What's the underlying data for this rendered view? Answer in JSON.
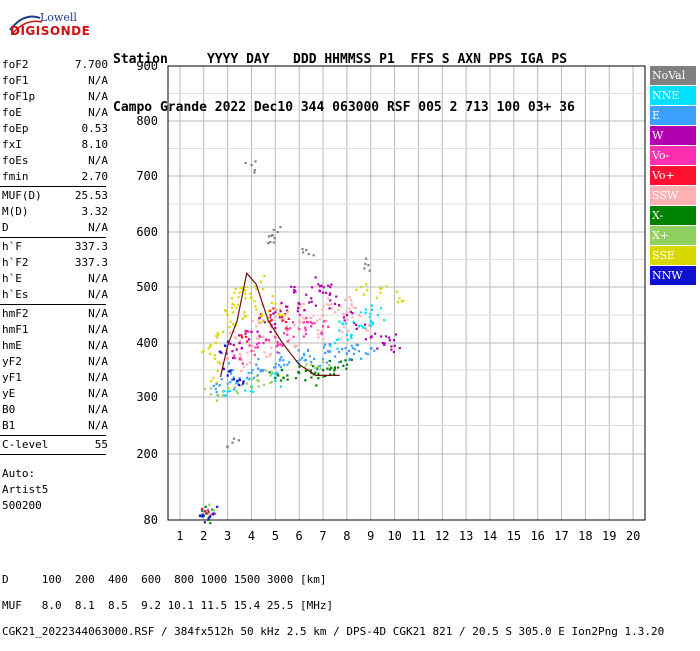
{
  "logo": {
    "line1": "Lowell",
    "line2": "DIGISONDE"
  },
  "header": {
    "labels": [
      "Station",
      "YYYY",
      "DAY",
      "DDD",
      "HHMMSS",
      "P1",
      "FFS",
      "S",
      "AXN",
      "PPS",
      "IGA",
      "PS"
    ],
    "values": [
      "Campo Grande",
      "2022",
      "Dec10",
      "344",
      "063000",
      "RSF",
      "005",
      "2",
      "713",
      "100",
      "03+",
      "36"
    ]
  },
  "params": {
    "group1": [
      {
        "name": "foF2",
        "value": "7.700"
      },
      {
        "name": "foF1",
        "value": "N/A"
      },
      {
        "name": "foF1p",
        "value": "N/A"
      },
      {
        "name": "foE",
        "value": "N/A"
      },
      {
        "name": "foEp",
        "value": "0.53"
      },
      {
        "name": "fxI",
        "value": "8.10"
      },
      {
        "name": "foEs",
        "value": "N/A"
      },
      {
        "name": "fmin",
        "value": "2.70"
      }
    ],
    "group2": [
      {
        "name": "MUF(D)",
        "value": "25.53"
      },
      {
        "name": "M(D)",
        "value": "3.32"
      },
      {
        "name": "D",
        "value": "N/A"
      }
    ],
    "group3": [
      {
        "name": "h`F",
        "value": "337.3"
      },
      {
        "name": "h`F2",
        "value": "337.3"
      },
      {
        "name": "h`E",
        "value": "N/A"
      },
      {
        "name": "h`Es",
        "value": "N/A"
      }
    ],
    "group4": [
      {
        "name": "hmF2",
        "value": "N/A"
      },
      {
        "name": "hmF1",
        "value": "N/A"
      },
      {
        "name": "hmE",
        "value": "N/A"
      },
      {
        "name": "yF2",
        "value": "N/A"
      },
      {
        "name": "yF1",
        "value": "N/A"
      },
      {
        "name": "yE",
        "value": "N/A"
      },
      {
        "name": "B0",
        "value": "N/A"
      },
      {
        "name": "B1",
        "value": "N/A"
      }
    ],
    "group5": [
      {
        "name": "C-level",
        "value": "55"
      }
    ],
    "auto": [
      "Auto:",
      "Artist5",
      "500200"
    ]
  },
  "legend": [
    {
      "label": "NoVal",
      "color": "#808080"
    },
    {
      "label": "NNE",
      "color": "#00e0ff"
    },
    {
      "label": "E",
      "color": "#3ca0ff"
    },
    {
      "label": "W",
      "color": "#b000b0"
    },
    {
      "label": "Vo-",
      "color": "#ff30b0"
    },
    {
      "label": "Vo+",
      "color": "#ff1030"
    },
    {
      "label": "SSW",
      "color": "#ffb0b0"
    },
    {
      "label": "X-",
      "color": "#008000"
    },
    {
      "label": "X+",
      "color": "#90d060"
    },
    {
      "label": "SSE",
      "color": "#d8d800"
    },
    {
      "label": "NNW",
      "color": "#1010d0"
    }
  ],
  "footer": {
    "line1": "D     100  200  400  600  800 1000 1500 3000 [km]",
    "line2": "MUF   8.0  8.1  8.5  9.2 10.1 11.5 15.4 25.5 [MHz]",
    "line3": "CGK21_2022344063000.RSF / 384fx512h 50 kHz 2.5 km / DPS-4D CGK21 821 / 20.5 S 305.0 E Ion2Png 1.3.20"
  },
  "chart_data": {
    "type": "scatter",
    "xlim": [
      0.5,
      20.5
    ],
    "ylim": [
      80,
      900
    ],
    "xticks": [
      "1",
      "2",
      "3",
      "4",
      "5",
      "6",
      "7",
      "8",
      "9",
      "10",
      "11",
      "12",
      "13",
      "14",
      "15",
      "16",
      "17",
      "18",
      "19",
      "20"
    ],
    "yticks": [
      "80",
      "200",
      "300",
      "400",
      "500",
      "600",
      "700",
      "800",
      "900"
    ],
    "grid": true,
    "legend_position": "right",
    "trace": {
      "color": "#6b1010",
      "x": [
        2.7,
        3.0,
        3.4,
        3.8,
        4.2,
        4.7,
        5.3,
        6.0,
        6.7,
        7.7
      ],
      "y": [
        337,
        395,
        440,
        525,
        505,
        440,
        400,
        360,
        340,
        340
      ]
    },
    "clusters": [
      {
        "name": "SSW",
        "color": "#ffb0b0",
        "points": [
          [
            3.0,
            370
          ],
          [
            3.5,
            380
          ],
          [
            4.0,
            395
          ],
          [
            4.5,
            410
          ],
          [
            5.0,
            420
          ],
          [
            5.5,
            430
          ],
          [
            6.0,
            440
          ],
          [
            6.5,
            445
          ],
          [
            7.0,
            450
          ],
          [
            7.5,
            455
          ],
          [
            8.0,
            455
          ],
          [
            8.5,
            450
          ],
          [
            3.3,
            410
          ],
          [
            4.2,
            430
          ],
          [
            5.2,
            460
          ],
          [
            6.2,
            470
          ],
          [
            7.2,
            480
          ],
          [
            8.2,
            470
          ],
          [
            3.8,
            360
          ],
          [
            4.8,
            380
          ],
          [
            5.8,
            395
          ],
          [
            6.8,
            410
          ],
          [
            7.8,
            420
          ],
          [
            8.8,
            425
          ]
        ]
      },
      {
        "name": "W",
        "color": "#b000b0",
        "points": [
          [
            3.5,
            400
          ],
          [
            4.0,
            420
          ],
          [
            4.5,
            440
          ],
          [
            5.0,
            455
          ],
          [
            5.5,
            465
          ],
          [
            6.0,
            470
          ],
          [
            6.5,
            480
          ],
          [
            7.0,
            490
          ],
          [
            7.5,
            470
          ],
          [
            8.0,
            450
          ],
          [
            8.5,
            430
          ],
          [
            9.0,
            410
          ],
          [
            9.5,
            400
          ],
          [
            10.0,
            395
          ],
          [
            3.2,
            385
          ],
          [
            5.8,
            500
          ],
          [
            7.3,
            500
          ],
          [
            9.8,
            405
          ],
          [
            4.8,
            420
          ],
          [
            6.8,
            505
          ]
        ]
      },
      {
        "name": "SSE",
        "color": "#d8d800",
        "points": [
          [
            2.2,
            390
          ],
          [
            2.5,
            400
          ],
          [
            2.8,
            420
          ],
          [
            3.0,
            450
          ],
          [
            3.2,
            470
          ],
          [
            3.5,
            490
          ],
          [
            3.8,
            500
          ],
          [
            4.0,
            480
          ],
          [
            4.2,
            460
          ],
          [
            4.5,
            440
          ],
          [
            3.3,
            430
          ],
          [
            3.7,
            455
          ],
          [
            2.6,
            365
          ],
          [
            4.4,
            510
          ],
          [
            5.0,
            470
          ],
          [
            5.4,
            450
          ],
          [
            8.6,
            500
          ],
          [
            9.4,
            490
          ],
          [
            10.2,
            480
          ],
          [
            2.4,
            335
          ]
        ]
      },
      {
        "name": "E",
        "color": "#3ca0ff",
        "points": [
          [
            2.5,
            315
          ],
          [
            3.0,
            325
          ],
          [
            3.5,
            335
          ],
          [
            4.0,
            345
          ],
          [
            4.5,
            350
          ],
          [
            5.0,
            355
          ],
          [
            5.5,
            360
          ],
          [
            6.0,
            362
          ],
          [
            6.5,
            365
          ],
          [
            7.0,
            370
          ],
          [
            7.5,
            375
          ],
          [
            8.0,
            380
          ],
          [
            8.5,
            385
          ],
          [
            9.0,
            390
          ],
          [
            3.2,
            350
          ],
          [
            4.2,
            360
          ],
          [
            5.2,
            370
          ],
          [
            6.2,
            380
          ],
          [
            7.2,
            385
          ],
          [
            8.2,
            395
          ]
        ]
      },
      {
        "name": "NNE",
        "color": "#00e0ff",
        "points": [
          [
            7.5,
            400
          ],
          [
            8.0,
            415
          ],
          [
            8.5,
            430
          ],
          [
            9.0,
            440
          ],
          [
            9.3,
            450
          ],
          [
            8.8,
            460
          ],
          [
            7.8,
            435
          ],
          [
            3.0,
            310
          ],
          [
            4.0,
            320
          ],
          [
            5.0,
            330
          ]
        ]
      },
      {
        "name": "X-",
        "color": "#008000",
        "points": [
          [
            5.0,
            335
          ],
          [
            5.5,
            340
          ],
          [
            6.0,
            345
          ],
          [
            6.5,
            345
          ],
          [
            7.0,
            350
          ],
          [
            7.5,
            355
          ],
          [
            8.0,
            360
          ],
          [
            6.8,
            335
          ],
          [
            7.3,
            342
          ],
          [
            2.0,
            88
          ],
          [
            2.1,
            92
          ],
          [
            2.2,
            95
          ]
        ]
      },
      {
        "name": "Vo-",
        "color": "#ff30b0",
        "points": [
          [
            4.5,
            400
          ],
          [
            5.0,
            410
          ],
          [
            5.5,
            415
          ],
          [
            6.0,
            425
          ],
          [
            6.5,
            430
          ],
          [
            4.0,
            385
          ],
          [
            3.5,
            370
          ],
          [
            7.0,
            430
          ],
          [
            5.3,
            395
          ],
          [
            6.3,
            445
          ],
          [
            2.3,
            90
          ]
        ]
      },
      {
        "name": "X+",
        "color": "#90d060",
        "points": [
          [
            2.3,
            305
          ],
          [
            2.8,
            310
          ],
          [
            3.3,
            318
          ],
          [
            3.8,
            325
          ],
          [
            4.3,
            330
          ],
          [
            4.8,
            340
          ],
          [
            6.5,
            360
          ],
          [
            7.0,
            365
          ],
          [
            2.4,
            98
          ]
        ]
      },
      {
        "name": "NNW",
        "color": "#1010d0",
        "points": [
          [
            3.0,
            340
          ],
          [
            3.4,
            330
          ],
          [
            2.9,
            395
          ],
          [
            2.05,
            96
          ],
          [
            2.25,
            86
          ],
          [
            2.4,
            92
          ],
          [
            1.95,
            90
          ]
        ]
      },
      {
        "name": "Vo+",
        "color": "#ff1030",
        "points": [
          [
            4.8,
            450
          ],
          [
            5.3,
            440
          ],
          [
            3.6,
            410
          ],
          [
            2.15,
            92
          ]
        ]
      },
      {
        "name": "NoVal",
        "color": "#808080",
        "points": [
          [
            4.0,
            720
          ],
          [
            3.2,
            220
          ],
          [
            4.7,
            580
          ],
          [
            5.1,
            600
          ],
          [
            6.4,
            560
          ],
          [
            8.9,
            540
          ]
        ]
      }
    ]
  }
}
